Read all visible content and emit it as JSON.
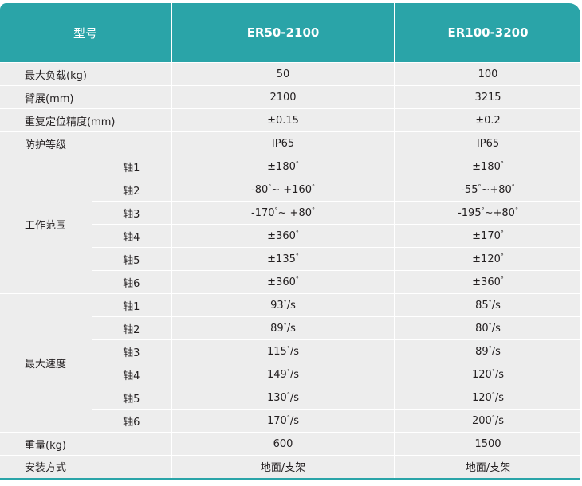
{
  "header": {
    "label": "型号",
    "models": [
      "ER50-2100",
      "ER100-3200"
    ]
  },
  "rows": [
    {
      "label": "最大负载(kg)",
      "values": [
        "50",
        "100"
      ]
    },
    {
      "label": "臂展(mm)",
      "values": [
        "2100",
        "3215"
      ]
    },
    {
      "label": "重复定位精度(mm)",
      "values": [
        "±0.15",
        "±0.2"
      ]
    },
    {
      "label": "防护等级",
      "values": [
        "IP65",
        "IP65"
      ]
    }
  ],
  "groups": [
    {
      "label": "工作范围",
      "axes": [
        {
          "axis": "轴1",
          "values": [
            "±180°",
            "±180°"
          ]
        },
        {
          "axis": "轴2",
          "values": [
            "-80°~ +160°",
            "-55°~+80°"
          ]
        },
        {
          "axis": "轴3",
          "values": [
            "-170°~ +80°",
            "-195°~+80°"
          ]
        },
        {
          "axis": "轴4",
          "values": [
            "±360°",
            "±170°"
          ]
        },
        {
          "axis": "轴5",
          "values": [
            "±135°",
            "±120°"
          ]
        },
        {
          "axis": "轴6",
          "values": [
            "±360°",
            "±360°"
          ]
        }
      ]
    },
    {
      "label": "最大速度",
      "axes": [
        {
          "axis": "轴1",
          "values": [
            "93°/s",
            "85°/s"
          ]
        },
        {
          "axis": "轴2",
          "values": [
            "89°/s",
            "80°/s"
          ]
        },
        {
          "axis": "轴3",
          "values": [
            "115°/s",
            "89°/s"
          ]
        },
        {
          "axis": "轴4",
          "values": [
            "149°/s",
            "120°/s"
          ]
        },
        {
          "axis": "轴5",
          "values": [
            "130°/s",
            "120°/s"
          ]
        },
        {
          "axis": "轴6",
          "values": [
            "170°/s",
            "200°/s"
          ]
        }
      ]
    }
  ],
  "footer_rows": [
    {
      "label": "重量(kg)",
      "values": [
        "600",
        "1500"
      ]
    },
    {
      "label": "安装方式",
      "values": [
        "地面/支架",
        "地面/支架"
      ]
    }
  ]
}
